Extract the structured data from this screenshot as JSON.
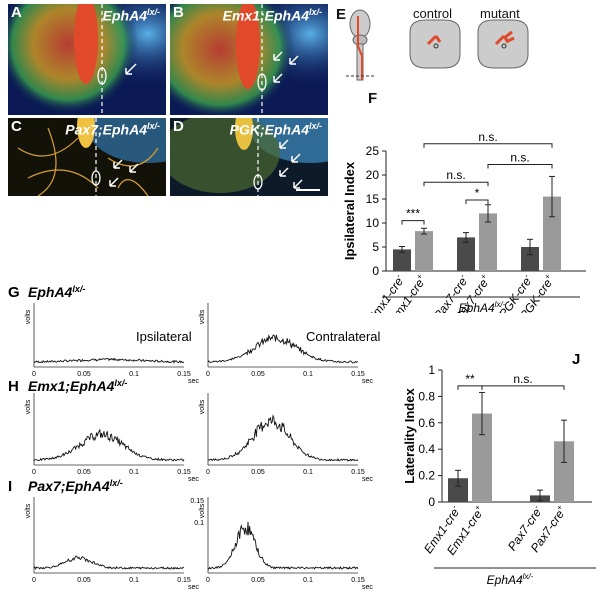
{
  "panels": {
    "a": {
      "letter": "A",
      "title": "EphA4",
      "sup": "lx/-"
    },
    "b": {
      "letter": "B",
      "title": "Emx1;EphA4",
      "sup": "lx/-"
    },
    "c": {
      "letter": "C",
      "title": "Pax7;EphA4",
      "sup": "lx/-"
    },
    "d": {
      "letter": "D",
      "title": "PGK;EphA4",
      "sup": "lx/-"
    },
    "e": {
      "letter": "E",
      "control": "control",
      "mutant": "mutant"
    }
  },
  "figF": {
    "letter": "F",
    "ylabel": "Ipsilateral Index",
    "yticks": [
      "0",
      "5",
      "10",
      "15",
      "20",
      "25"
    ],
    "xlabels": [
      "Emx1-cre",
      "Emx1-cre",
      "Pax7-cre",
      "Pax7-cre",
      "PGK-cre",
      "PGK-cre"
    ],
    "supers": [
      "-",
      "+",
      "-",
      "+",
      "-",
      "+"
    ],
    "genotype": "EphA4",
    "genotype_sup": "lx/-",
    "sig": {
      "emx": "***",
      "pax": "*",
      "pax_pgk": "n.s.",
      "emx_pax": "n.s.",
      "emx_pgk": "n.s."
    }
  },
  "figJ": {
    "letter": "J",
    "ylabel": "Laterality Index",
    "yticks": [
      "0",
      "0.2",
      "0.4",
      "0.6",
      "0.8",
      "1"
    ],
    "xlabels": [
      "Emx1-cre",
      "Emx1-cre",
      "Pax7-cre",
      "Pax7-cre"
    ],
    "supers": [
      "-",
      "+",
      "-",
      "+"
    ],
    "genotype": "EphA4",
    "genotype_sup": "lx/-",
    "sig": {
      "emx": "**",
      "ns": "n.s."
    }
  },
  "traces": {
    "g": {
      "letter": "G",
      "title": "EphA4",
      "sup": "lx/-",
      "ipsi": "Ipsilateral",
      "contra": "Contralateral"
    },
    "h": {
      "letter": "H",
      "title": "Emx1;EphA4",
      "sup": "lx/-"
    },
    "i": {
      "letter": "I",
      "title": "Pax7;EphA4",
      "sup": "lx/-"
    },
    "volts": "volts",
    "sec": "sec",
    "xticks": [
      "0",
      "0.05",
      "0.1",
      "0.15"
    ],
    "yticks": [
      "0.1",
      "0.15"
    ]
  },
  "chart_data": [
    {
      "type": "bar",
      "title": "",
      "ylabel": "Ipsilateral Index",
      "ylim": [
        0,
        25
      ],
      "categories": [
        "Emx1-cre-",
        "Emx1-cre+",
        "Pax7-cre-",
        "Pax7-cre+",
        "PGK-cre-",
        "PGK-cre+"
      ],
      "values": [
        4.5,
        8.3,
        7.0,
        12.0,
        5.0,
        15.5
      ],
      "errors": [
        0.6,
        0.6,
        1.0,
        1.8,
        1.6,
        4.2
      ],
      "colors": [
        "#4a4a4a",
        "#9a9a9a",
        "#4a4a4a",
        "#9a9a9a",
        "#4a4a4a",
        "#9a9a9a"
      ]
    },
    {
      "type": "bar",
      "title": "",
      "ylabel": "Laterality Index",
      "ylim": [
        0,
        1
      ],
      "categories": [
        "Emx1-cre-",
        "Emx1-cre+",
        "Pax7-cre-",
        "Pax7-cre+"
      ],
      "values": [
        0.18,
        0.67,
        0.05,
        0.46
      ],
      "errors": [
        0.06,
        0.16,
        0.04,
        0.16
      ],
      "colors": [
        "#4a4a4a",
        "#9a9a9a",
        "#4a4a4a",
        "#9a9a9a"
      ]
    }
  ]
}
